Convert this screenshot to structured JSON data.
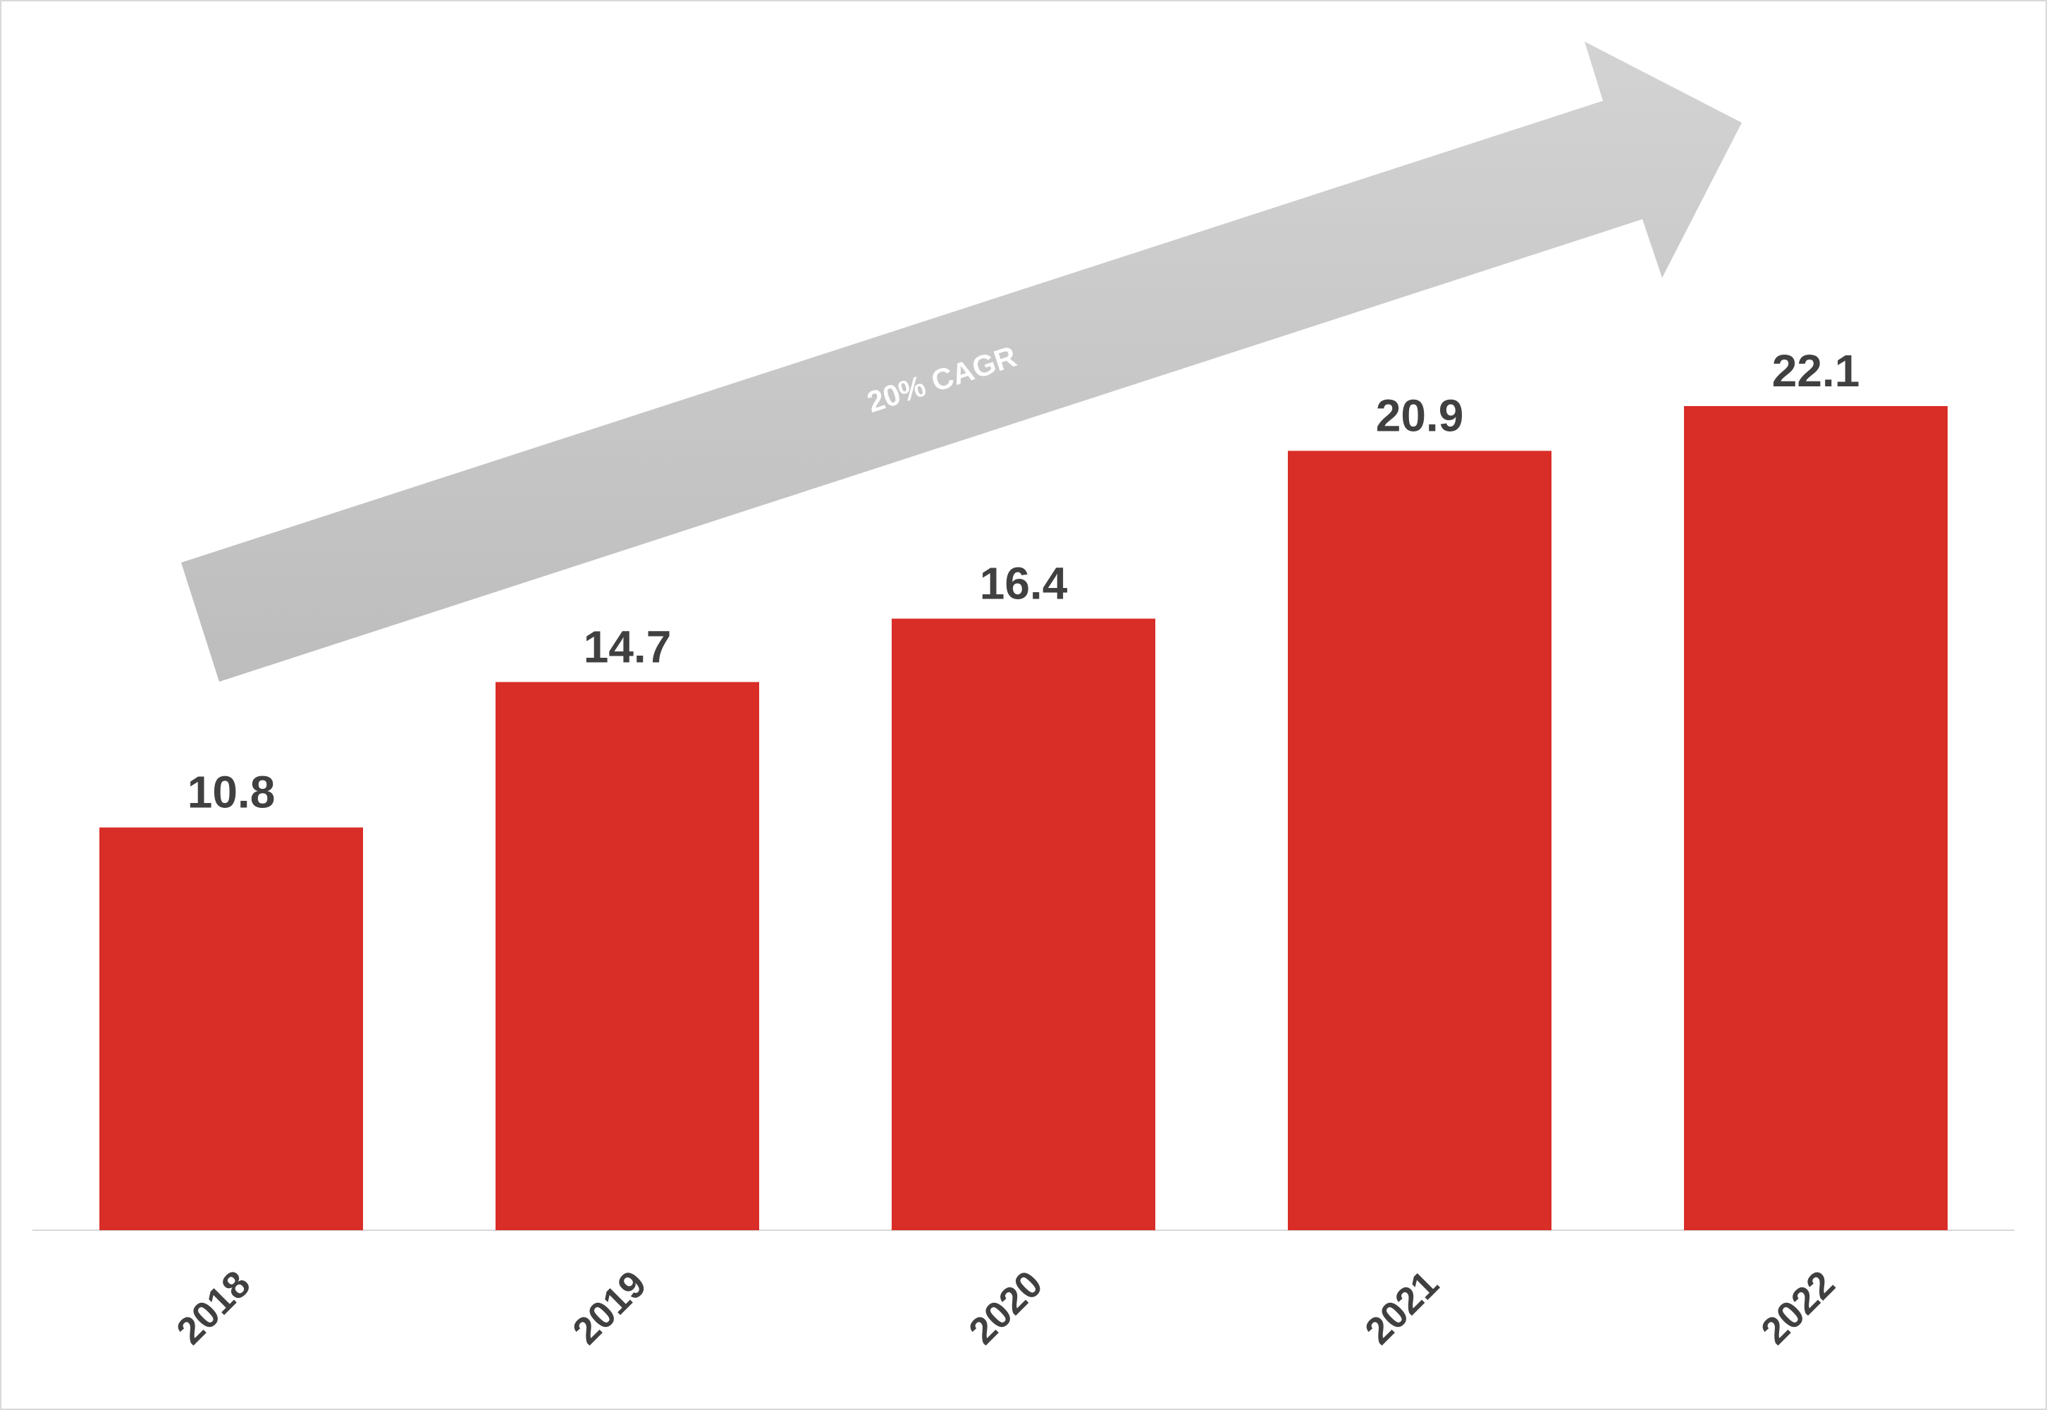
{
  "chart_data": {
    "type": "bar",
    "categories": [
      "2018",
      "2019",
      "2020",
      "2021",
      "2022"
    ],
    "values": [
      10.8,
      14.7,
      16.4,
      20.9,
      22.1
    ],
    "color": "#d92d27",
    "annotation": "20% CAGR"
  }
}
